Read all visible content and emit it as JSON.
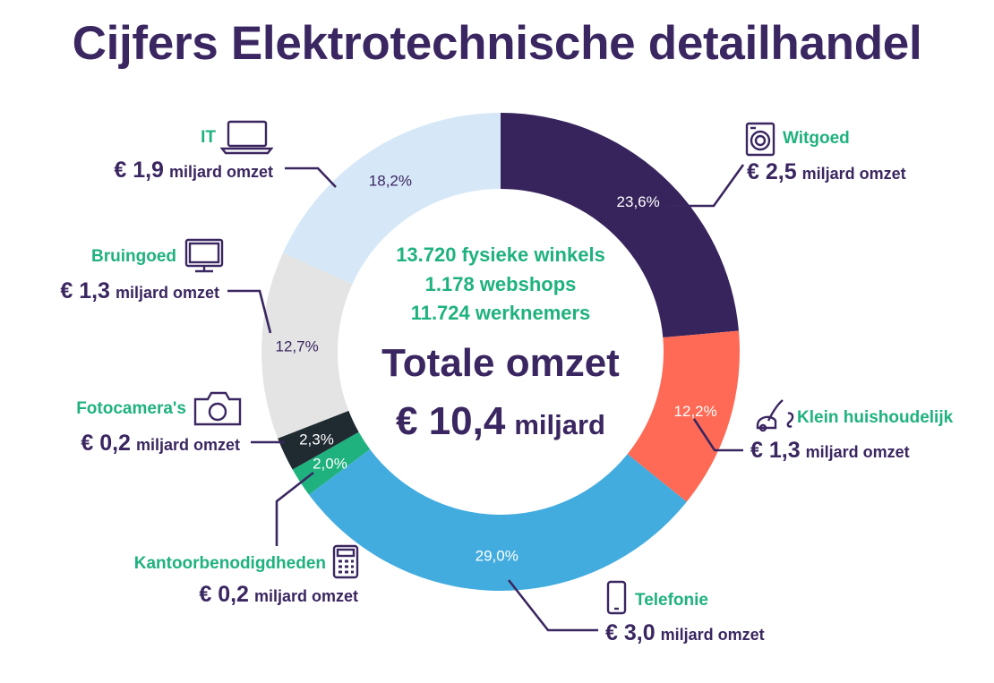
{
  "title": "Cijfers Elektrotechnische detailhandel",
  "center": {
    "line1": "13.720 fysieke winkels",
    "line2": "1.178 webshops",
    "line3": "11.724 werknemers",
    "total_label": "Totale omzet",
    "total_value_prefix": "€ 10,4",
    "total_value_unit": "miljard"
  },
  "colors": {
    "title": "#3a2660",
    "category_label": "#1fb27e",
    "amount": "#3a2660"
  },
  "chart_data": {
    "type": "pie",
    "donut": true,
    "start": "top",
    "direction": "clockwise",
    "slices": [
      {
        "name": "Witgoed",
        "value": 23.6,
        "pct_label": "23,6%",
        "amount": "€ 2,5",
        "unit": "miljard omzet",
        "color": "#37245c",
        "text_color": "#ffffff",
        "icon": "washing-machine-icon"
      },
      {
        "name": "Klein huishoudelijk",
        "value": 12.2,
        "pct_label": "12,2%",
        "amount": "€ 1,3",
        "unit": "miljard omzet",
        "color": "#fe6a55",
        "text_color": "#ffffff",
        "icon": "vacuum-cleaner-icon"
      },
      {
        "name": "Telefonie",
        "value": 29.0,
        "pct_label": "29,0%",
        "amount": "€ 3,0",
        "unit": "miljard omzet",
        "color": "#43acdf",
        "text_color": "#ffffff",
        "icon": "smartphone-icon"
      },
      {
        "name": "Kantoorbenodigdheden",
        "value": 2.0,
        "pct_label": "2,0%",
        "amount": "€ 0,2",
        "unit": "miljard omzet",
        "color": "#1fb27e",
        "text_color": "#ffffff",
        "icon": "calculator-icon"
      },
      {
        "name": "Fotocamera's",
        "value": 2.3,
        "pct_label": "2,3%",
        "amount": "€ 0,2",
        "unit": "miljard omzet",
        "color": "#1f2a31",
        "text_color": "#ffffff",
        "icon": "camera-icon"
      },
      {
        "name": "Bruingoed",
        "value": 12.7,
        "pct_label": "12,7%",
        "amount": "€ 1,3",
        "unit": "miljard omzet",
        "color": "#e4e4e4",
        "text_color": "#3a2660",
        "icon": "monitor-icon"
      },
      {
        "name": "IT",
        "value": 18.2,
        "pct_label": "18,2%",
        "amount": "€ 1,9",
        "unit": "miljard omzet",
        "color": "#d6e8f7",
        "text_color": "#3a2660",
        "icon": "laptop-icon"
      }
    ]
  }
}
